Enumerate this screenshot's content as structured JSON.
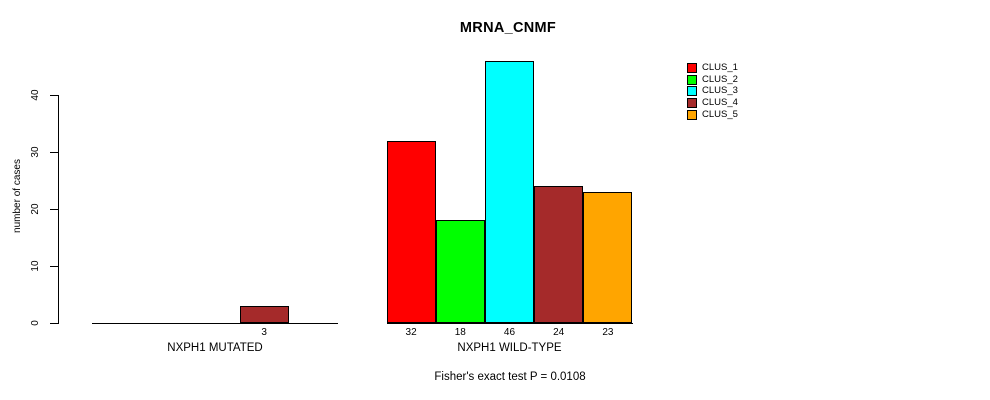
{
  "chart_data": {
    "type": "bar",
    "title": "MRNA_CNMF",
    "ylabel": "number of cases",
    "xlabel": "",
    "yticks": [
      0,
      10,
      20,
      30,
      40
    ],
    "ylim": [
      0,
      46
    ],
    "grid": false,
    "legend_position": "top-right",
    "bar_border_color": "#000000",
    "axis_color": "#000000",
    "background_color": "#ffffff",
    "series": [
      {
        "name": "CLUS_1",
        "color": "#ff0000"
      },
      {
        "name": "CLUS_2",
        "color": "#00ff00"
      },
      {
        "name": "CLUS_3",
        "color": "#00ffff"
      },
      {
        "name": "CLUS_4",
        "color": "#a52a2a"
      },
      {
        "name": "CLUS_5",
        "color": "#ffa500"
      }
    ],
    "groups": [
      {
        "label": "NXPH1 MUTATED",
        "values": [
          0,
          0,
          0,
          3,
          0
        ]
      },
      {
        "label": "NXPH1 WILD-TYPE",
        "values": [
          32,
          18,
          46,
          24,
          23
        ]
      }
    ],
    "annotation": "Fisher's exact test P = 0.0108"
  }
}
